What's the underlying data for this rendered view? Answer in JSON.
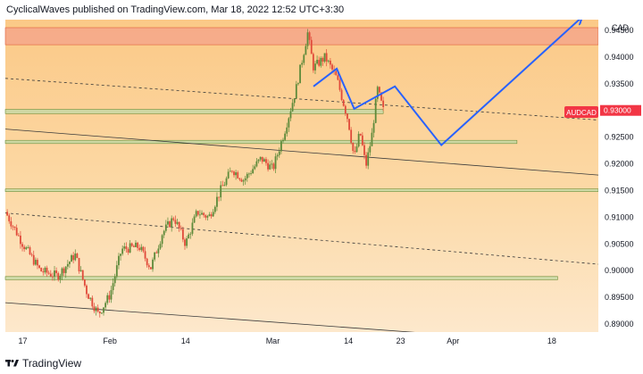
{
  "header": {
    "publish_line": "CyclicalWaves published on TradingView.com, Mar 18, 2022 12:52 UTC+3:30"
  },
  "footer": {
    "brand": "TradingView"
  },
  "chart_data": {
    "type": "candlestick",
    "symbol_label": "AUDCAD",
    "currency_label": "CAD",
    "last_price": 0.93,
    "y_ticks": [
      "0.94500",
      "0.94000",
      "0.93500",
      "0.93000",
      "0.92500",
      "0.92000",
      "0.91500",
      "0.91000",
      "0.90500",
      "0.90000",
      "0.89500",
      "0.89000"
    ],
    "ylim": [
      0.8885,
      0.947
    ],
    "x_ticks": [
      {
        "label": "17",
        "date": "2022-01-17"
      },
      {
        "label": "Feb",
        "date": "2022-02-01"
      },
      {
        "label": "14",
        "date": "2022-02-14"
      },
      {
        "label": "Mar",
        "date": "2022-03-01"
      },
      {
        "label": "14",
        "date": "2022-03-14"
      },
      {
        "label": "23",
        "date": "2022-03-23"
      },
      {
        "label": "Apr",
        "date": "2022-04-01"
      },
      {
        "label": "18",
        "date": "2022-04-18"
      }
    ],
    "close_path": [
      [
        "2022-01-14",
        0.911
      ],
      [
        "2022-01-17",
        0.905
      ],
      [
        "2022-01-20",
        0.9
      ],
      [
        "2022-01-23",
        0.899
      ],
      [
        "2022-01-26",
        0.903
      ],
      [
        "2022-01-28",
        0.896
      ],
      [
        "2022-01-30",
        0.8918
      ],
      [
        "2022-02-01",
        0.8955
      ],
      [
        "2022-02-03",
        0.904
      ],
      [
        "2022-02-06",
        0.9045
      ],
      [
        "2022-02-08",
        0.9005
      ],
      [
        "2022-02-10",
        0.907
      ],
      [
        "2022-02-12",
        0.91
      ],
      [
        "2022-02-14",
        0.905
      ],
      [
        "2022-02-16",
        0.911
      ],
      [
        "2022-02-18",
        0.91
      ],
      [
        "2022-02-20",
        0.915
      ],
      [
        "2022-02-22",
        0.919
      ],
      [
        "2022-02-24",
        0.917
      ],
      [
        "2022-02-27",
        0.921
      ],
      [
        "2022-03-01",
        0.919
      ],
      [
        "2022-03-03",
        0.926
      ],
      [
        "2022-03-05",
        0.934
      ],
      [
        "2022-03-07",
        0.9445
      ],
      [
        "2022-03-08",
        0.938
      ],
      [
        "2022-03-10",
        0.94
      ],
      [
        "2022-03-12",
        0.936
      ],
      [
        "2022-03-14",
        0.928
      ],
      [
        "2022-03-15",
        0.921
      ],
      [
        "2022-03-16",
        0.926
      ],
      [
        "2022-03-17",
        0.9195
      ],
      [
        "2022-03-18",
        0.925
      ],
      [
        "2022-03-19",
        0.934
      ],
      [
        "2022-03-20",
        0.93
      ]
    ],
    "zones": [
      {
        "kind": "resistance",
        "low": 0.9423,
        "high": 0.9455,
        "from": "2022-01-14",
        "to": "end",
        "color": "#f5a98a"
      },
      {
        "kind": "support",
        "low": 0.9294,
        "high": 0.9302,
        "from": "2022-01-14",
        "to": "2022-03-20",
        "color": "#c6d8a4"
      },
      {
        "kind": "support",
        "low": 0.9238,
        "high": 0.9244,
        "from": "2022-01-14",
        "to": "2022-04-12",
        "color": "#c6d8a4"
      },
      {
        "kind": "support",
        "low": 0.9148,
        "high": 0.9153,
        "from": "2022-01-14",
        "to": "end",
        "color": "#c6d8a4"
      },
      {
        "kind": "support",
        "low": 0.8983,
        "high": 0.8989,
        "from": "2022-01-14",
        "to": "2022-04-19",
        "color": "#c6d8a4"
      }
    ],
    "trendlines": [
      {
        "style": "dashed",
        "from": [
          "2022-01-14",
          0.936
        ],
        "to": [
          "end",
          0.9282
        ]
      },
      {
        "style": "solid",
        "from": [
          "2022-01-14",
          0.9265
        ],
        "to": [
          "end",
          0.9179
        ]
      },
      {
        "style": "dashed",
        "from": [
          "2022-01-14",
          0.9108
        ],
        "to": [
          "end",
          0.9012
        ]
      },
      {
        "style": "solid",
        "from": [
          "2022-01-14",
          0.894
        ],
        "to": [
          "2022-03-31",
          0.888
        ]
      }
    ],
    "projection": [
      [
        "2022-03-08",
        0.9345
      ],
      [
        "2022-03-12",
        0.9378
      ],
      [
        "2022-03-15",
        0.9303
      ],
      [
        "2022-03-22",
        0.9345
      ],
      [
        "2022-03-30",
        0.9235
      ],
      [
        "2022-04-23",
        0.9473
      ]
    ],
    "colors": {
      "background": "#fbd49a",
      "background_light": "#fde6c3",
      "up_candle": "#5d8a3a",
      "down_candle": "#e04a3a",
      "projection_line": "#2962ff",
      "symbol_badge": "#f23645",
      "axis_text": "#131722"
    }
  }
}
